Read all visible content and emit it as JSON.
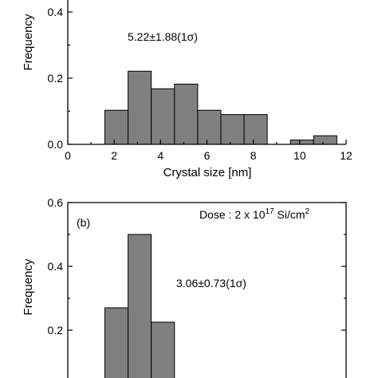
{
  "chart_data": [
    {
      "type": "bar",
      "panel_label": "",
      "annotation": "5.22±1.88(1σ)",
      "dose_label": "",
      "xlabel": "Crystal size [nm]",
      "ylabel": "Frequency",
      "xlim": [
        0,
        12
      ],
      "ylim": [
        0,
        0.45
      ],
      "xticks": [
        0,
        2,
        4,
        6,
        8,
        10,
        12
      ],
      "yticks": [
        0.0,
        0.2,
        0.4
      ],
      "ytick_labels": [
        "0.0",
        "0.2",
        "0.4"
      ],
      "bin_width": 1.0,
      "bins": [
        {
          "x0": 1.6,
          "value": 0.103
        },
        {
          "x0": 2.6,
          "value": 0.221
        },
        {
          "x0": 3.6,
          "value": 0.168
        },
        {
          "x0": 4.6,
          "value": 0.182
        },
        {
          "x0": 5.6,
          "value": 0.103
        },
        {
          "x0": 6.6,
          "value": 0.09
        },
        {
          "x0": 7.6,
          "value": 0.09
        },
        {
          "x0": 9.6,
          "value": 0.013
        },
        {
          "x0": 10.6,
          "value": 0.026
        }
      ]
    },
    {
      "type": "bar",
      "panel_label": "(b)",
      "annotation": "3.06±0.73(1σ)",
      "dose_label": "Dose : 2 x 10",
      "dose_exponent": "17",
      "dose_unit": " Si/cm",
      "dose_unit_exponent": "2",
      "xlabel": "",
      "ylabel": "Frequency",
      "xlim": [
        0,
        12
      ],
      "ylim": [
        0,
        0.6
      ],
      "yticks": [
        0.2,
        0.4,
        0.6
      ],
      "ytick_labels": [
        "0.2",
        "0.4",
        "0.6"
      ],
      "bin_width": 1.0,
      "bins": [
        {
          "x0": 1.6,
          "value": 0.27
        },
        {
          "x0": 2.6,
          "value": 0.5
        },
        {
          "x0": 3.6,
          "value": 0.225
        }
      ]
    }
  ]
}
